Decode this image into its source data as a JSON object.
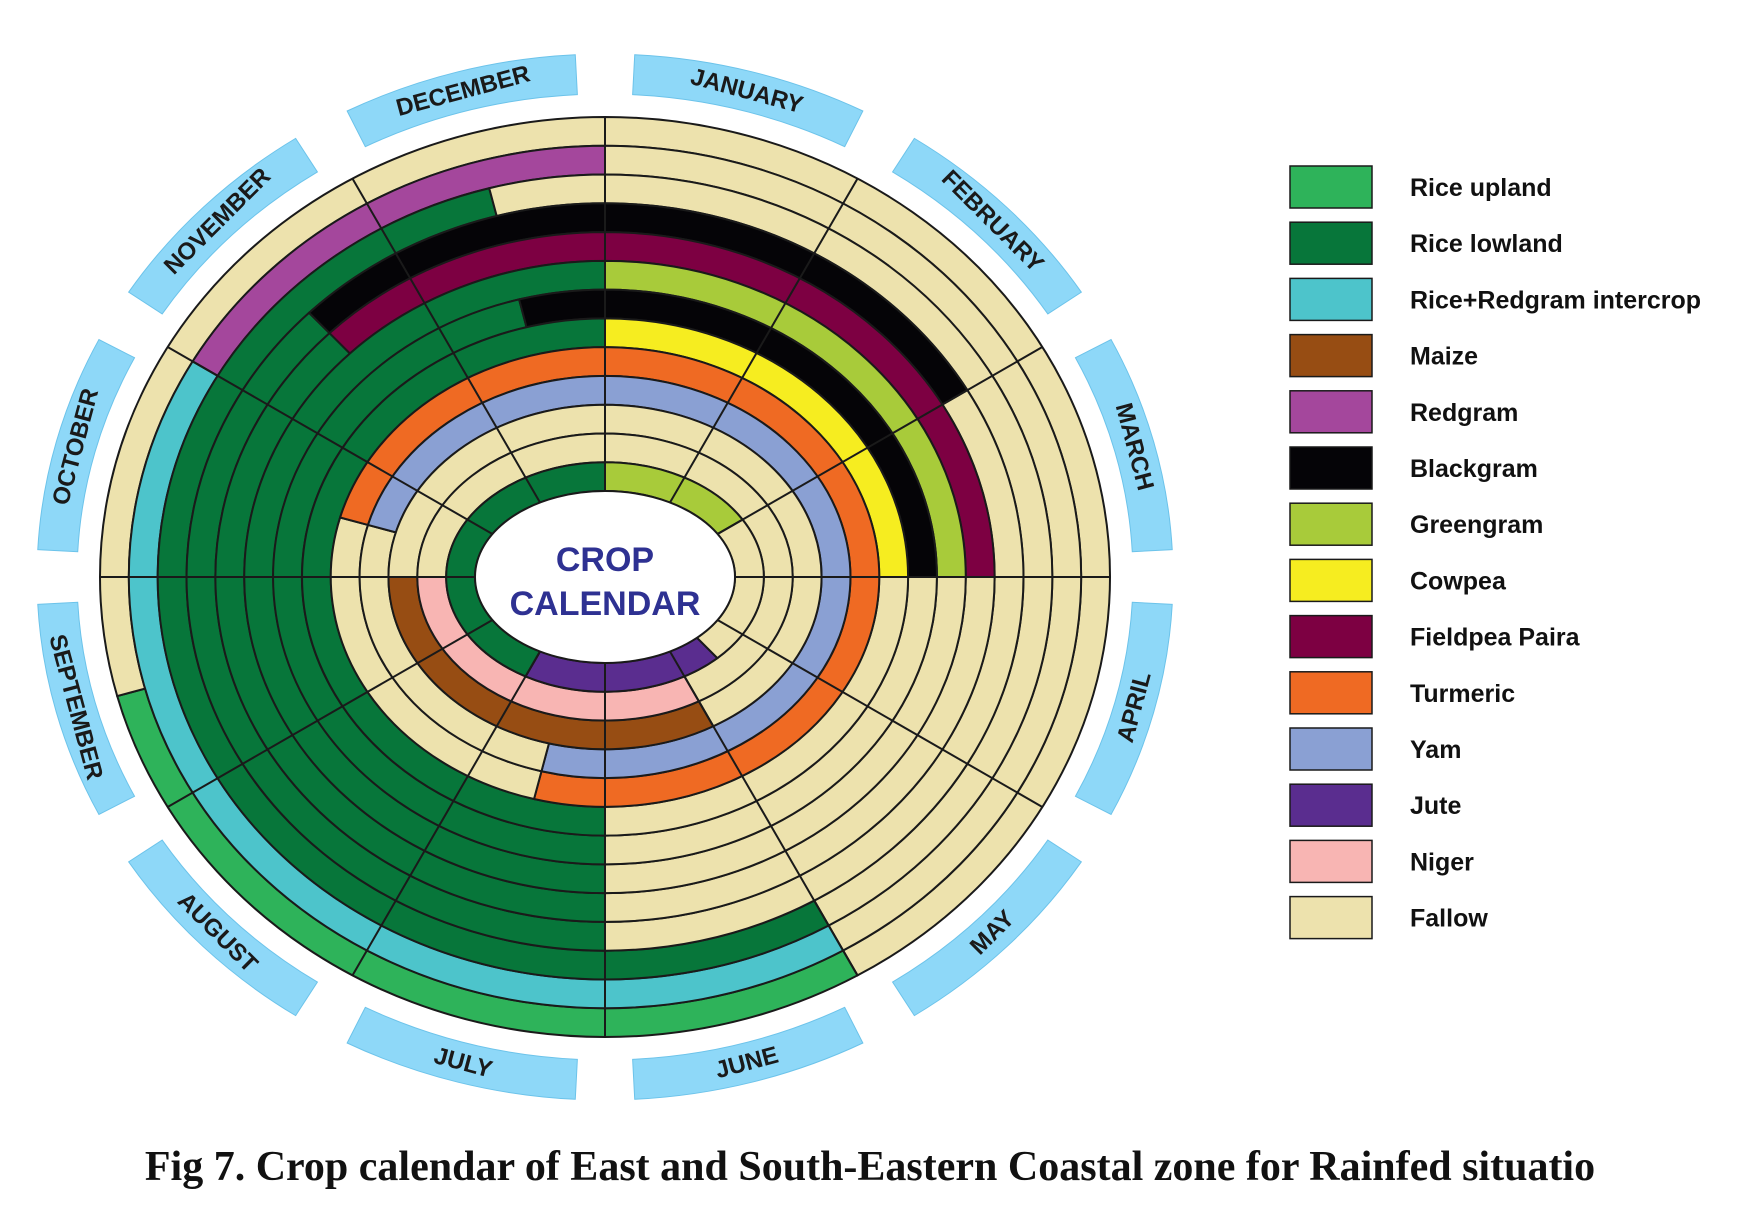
{
  "title_line1": "CROP",
  "title_line2": "CALENDAR",
  "caption": "Fig 7. Crop calendar of East and South-Eastern Coastal zone for Rainfed situatio",
  "months": [
    "JANUARY",
    "FEBRUARY",
    "MARCH",
    "APRIL",
    "MAY",
    "JUNE",
    "JULY",
    "AUGUST",
    "SEPTEMBER",
    "OCTOBER",
    "NOVEMBER",
    "DECEMBER"
  ],
  "colors": {
    "ring_stroke": "#1a1a1a",
    "month_tab": "#8ed8f8",
    "title": "#2e3192"
  },
  "legend": [
    {
      "key": "rice_upland",
      "label": "Rice upland",
      "color": "#2eb35a"
    },
    {
      "key": "rice_lowland",
      "label": "Rice lowland",
      "color": "#07763a"
    },
    {
      "key": "rice_redgram",
      "label": "Rice+Redgram intercrop",
      "color": "#4dc4cb"
    },
    {
      "key": "maize",
      "label": "Maize",
      "color": "#974d13"
    },
    {
      "key": "redgram",
      "label": "Redgram",
      "color": "#a4479c"
    },
    {
      "key": "blackgram",
      "label": "Blackgram",
      "color": "#050407"
    },
    {
      "key": "greengram",
      "label": "Greengram",
      "color": "#a8cb3a"
    },
    {
      "key": "cowpea",
      "label": "Cowpea",
      "color": "#f6ed20"
    },
    {
      "key": "fieldpea",
      "label": "Fieldpea Paira",
      "color": "#7d0042"
    },
    {
      "key": "turmeric",
      "label": "Turmeric",
      "color": "#ef6a23"
    },
    {
      "key": "yam",
      "label": "Yam",
      "color": "#8aa0d3"
    },
    {
      "key": "jute",
      "label": "Jute",
      "color": "#5a2d8f"
    },
    {
      "key": "niger",
      "label": "Niger",
      "color": "#f8b5b3"
    },
    {
      "key": "fallow",
      "label": "Fallow",
      "color": "#ede2ad"
    }
  ],
  "chart_data": {
    "type": "radial-calendar",
    "month_order_clockwise_from_top": [
      "JANUARY",
      "FEBRUARY",
      "MARCH",
      "APRIL",
      "MAY",
      "JUNE",
      "JULY",
      "AUGUST",
      "SEPTEMBER",
      "OCTOBER",
      "NOVEMBER",
      "DECEMBER"
    ],
    "ring_order": "outermost first",
    "rings": [
      {
        "segments": [
          {
            "crop": "fallow",
            "start": 0,
            "end": 5
          },
          {
            "crop": "rice_upland",
            "start": 5,
            "end": 8.5
          },
          {
            "crop": "fallow",
            "start": 8.5,
            "end": 12
          }
        ]
      },
      {
        "segments": [
          {
            "crop": "fallow",
            "start": 0,
            "end": 5
          },
          {
            "crop": "rice_redgram",
            "start": 5,
            "end": 10
          },
          {
            "crop": "redgram",
            "start": 10,
            "end": 12
          }
        ]
      },
      {
        "segments": [
          {
            "crop": "fallow",
            "start": 0,
            "end": 5
          },
          {
            "crop": "rice_lowland",
            "start": 5,
            "end": 11.5
          },
          {
            "crop": "fallow",
            "start": 11.5,
            "end": 12
          }
        ]
      },
      {
        "segments": [
          {
            "crop": "blackgram",
            "start": 0,
            "end": 2
          },
          {
            "crop": "fallow",
            "start": 2,
            "end": 6
          },
          {
            "crop": "rice_lowland",
            "start": 6,
            "end": 10.5
          },
          {
            "crop": "blackgram",
            "start": 10.5,
            "end": 12
          }
        ]
      },
      {
        "segments": [
          {
            "crop": "fieldpea",
            "start": 0,
            "end": 3
          },
          {
            "crop": "fallow",
            "start": 3,
            "end": 6
          },
          {
            "crop": "rice_lowland",
            "start": 6,
            "end": 10.5
          },
          {
            "crop": "fieldpea",
            "start": 10.5,
            "end": 12
          }
        ]
      },
      {
        "segments": [
          {
            "crop": "greengram",
            "start": 0,
            "end": 3
          },
          {
            "crop": "fallow",
            "start": 3,
            "end": 6
          },
          {
            "crop": "rice_lowland",
            "start": 6,
            "end": 12
          }
        ]
      },
      {
        "segments": [
          {
            "crop": "blackgram",
            "start": 0,
            "end": 3
          },
          {
            "crop": "fallow",
            "start": 3,
            "end": 6
          },
          {
            "crop": "rice_lowland",
            "start": 6,
            "end": 11.5
          },
          {
            "crop": "blackgram",
            "start": 11.5,
            "end": 12
          }
        ]
      },
      {
        "segments": [
          {
            "crop": "cowpea",
            "start": 0,
            "end": 3
          },
          {
            "crop": "fallow",
            "start": 3,
            "end": 6
          },
          {
            "crop": "rice_lowland",
            "start": 6,
            "end": 12
          }
        ]
      },
      {
        "segments": [
          {
            "crop": "turmeric",
            "start": 0,
            "end": 6.5
          },
          {
            "crop": "fallow",
            "start": 6.5,
            "end": 9.5
          },
          {
            "crop": "turmeric",
            "start": 9.5,
            "end": 12
          }
        ]
      },
      {
        "segments": [
          {
            "crop": "yam",
            "start": 0,
            "end": 6.5
          },
          {
            "crop": "fallow",
            "start": 6.5,
            "end": 9.5
          },
          {
            "crop": "yam",
            "start": 9.5,
            "end": 12
          }
        ]
      },
      {
        "segments": [
          {
            "crop": "fallow",
            "start": 0,
            "end": 5
          },
          {
            "crop": "maize",
            "start": 5,
            "end": 9
          },
          {
            "crop": "fallow",
            "start": 9,
            "end": 12
          }
        ]
      },
      {
        "segments": [
          {
            "crop": "fallow",
            "start": 0,
            "end": 5
          },
          {
            "crop": "niger",
            "start": 5,
            "end": 9
          },
          {
            "crop": "fallow",
            "start": 9,
            "end": 12
          }
        ]
      },
      {
        "segments": [
          {
            "crop": "greengram",
            "start": 0,
            "end": 2
          },
          {
            "crop": "fallow",
            "start": 2,
            "end": 4.5
          },
          {
            "crop": "jute",
            "start": 4.5,
            "end": 7
          },
          {
            "crop": "rice_lowland",
            "start": 7,
            "end": 12
          }
        ]
      }
    ]
  }
}
